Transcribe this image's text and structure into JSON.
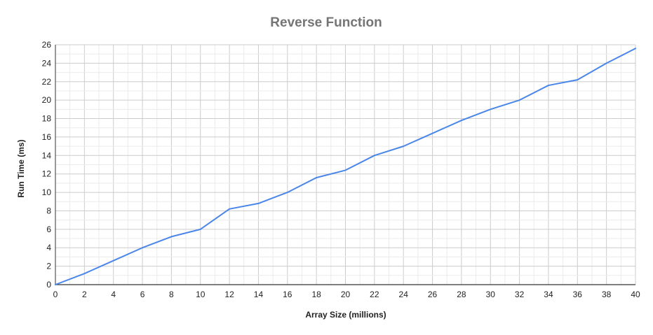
{
  "chart_data": {
    "type": "line",
    "title": "Reverse Function",
    "xlabel": "Array Size (millions)",
    "ylabel": "Run Time (ms)",
    "xlim": [
      0,
      40
    ],
    "ylim": [
      0,
      26
    ],
    "x_ticks": [
      0,
      2,
      4,
      6,
      8,
      10,
      12,
      14,
      16,
      18,
      20,
      22,
      24,
      26,
      28,
      30,
      32,
      34,
      36,
      38,
      40
    ],
    "y_ticks": [
      0,
      2,
      4,
      6,
      8,
      10,
      12,
      14,
      16,
      18,
      20,
      22,
      24,
      26
    ],
    "grid": true,
    "legend": "none",
    "series": [
      {
        "color": "#4a86e8",
        "x": [
          0,
          2,
          4,
          6,
          8,
          10,
          12,
          14,
          16,
          18,
          20,
          22,
          24,
          26,
          28,
          30,
          32,
          34,
          36,
          38,
          40
        ],
        "y": [
          0,
          1.2,
          2.6,
          4.0,
          5.2,
          6.0,
          8.2,
          8.8,
          10.0,
          11.6,
          12.4,
          14.0,
          15.0,
          16.4,
          17.8,
          19.0,
          20.0,
          21.6,
          22.2,
          24.0,
          25.6
        ]
      }
    ]
  }
}
